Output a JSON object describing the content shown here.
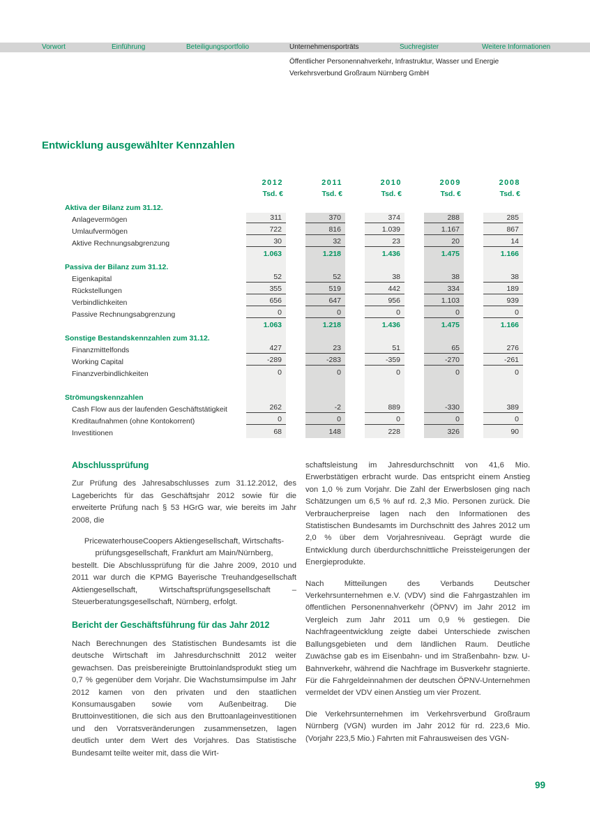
{
  "nav": {
    "items": [
      {
        "label": "Vorwort",
        "active": false
      },
      {
        "label": "Einführung",
        "active": false
      },
      {
        "label": "Beteiligungsportfolio",
        "active": false
      },
      {
        "label": "Unternehmensporträts",
        "active": true
      },
      {
        "label": "Suchregister",
        "active": false
      },
      {
        "label": "Weitere Informationen",
        "active": false
      }
    ]
  },
  "header": {
    "line1": "Öffentlicher Personennahverkehr, Infrastruktur, Wasser und Energie",
    "line2": "Verkehrsverbund Großraum Nürnberg GmbH"
  },
  "page_title": "Entwicklung ausgewählter Kennzahlen",
  "table": {
    "years": [
      "2012",
      "2011",
      "2010",
      "2009",
      "2008"
    ],
    "unit_label": "Tsd. €",
    "rows": [
      {
        "type": "section",
        "label": "Aktiva der Bilanz zum 31.12.",
        "values": [
          "",
          "",
          "",
          "",
          ""
        ]
      },
      {
        "type": "item",
        "rule": true,
        "label": "Anlagevermögen",
        "values": [
          "311",
          "370",
          "374",
          "288",
          "285"
        ]
      },
      {
        "type": "item",
        "rule": true,
        "label": "Umlaufvermögen",
        "values": [
          "722",
          "816",
          "1.039",
          "1.167",
          "867"
        ]
      },
      {
        "type": "item",
        "rule": true,
        "label": "Aktive Rechnungsabgrenzung",
        "values": [
          "30",
          "32",
          "23",
          "20",
          "14"
        ]
      },
      {
        "type": "total",
        "label": "",
        "values": [
          "1.063",
          "1.218",
          "1.436",
          "1.475",
          "1.166"
        ]
      },
      {
        "type": "section",
        "label": "Passiva der Bilanz zum 31.12.",
        "values": [
          "",
          "",
          "",
          "",
          ""
        ]
      },
      {
        "type": "item",
        "rule": true,
        "label": "Eigenkapital",
        "values": [
          "52",
          "52",
          "38",
          "38",
          "38"
        ]
      },
      {
        "type": "item",
        "rule": true,
        "label": "Rückstellungen",
        "values": [
          "355",
          "519",
          "442",
          "334",
          "189"
        ]
      },
      {
        "type": "item",
        "rule": true,
        "label": "Verbindlichkeiten",
        "values": [
          "656",
          "647",
          "956",
          "1.103",
          "939"
        ]
      },
      {
        "type": "item",
        "rule": true,
        "label": "Passive Rechnungsabgrenzung",
        "values": [
          "0",
          "0",
          "0",
          "0",
          "0"
        ]
      },
      {
        "type": "total",
        "label": "",
        "values": [
          "1.063",
          "1.218",
          "1.436",
          "1.475",
          "1.166"
        ]
      },
      {
        "type": "section",
        "label": "Sonstige Bestandskennzahlen zum 31.12.",
        "values": [
          "",
          "",
          "",
          "",
          ""
        ]
      },
      {
        "type": "item",
        "rule": true,
        "label": "Finanzmittelfonds",
        "values": [
          "427",
          "23",
          "51",
          "65",
          "276"
        ]
      },
      {
        "type": "item",
        "rule": true,
        "label": "Working Capital",
        "values": [
          "-289",
          "-283",
          "-359",
          "-270",
          "-261"
        ]
      },
      {
        "type": "item",
        "rule": false,
        "label": "Finanzverbindlichkeiten",
        "values": [
          "0",
          "0",
          "0",
          "0",
          "0"
        ]
      },
      {
        "type": "spacer",
        "label": "",
        "values": [
          "",
          "",
          "",
          "",
          ""
        ]
      },
      {
        "type": "section",
        "label": "Strömungskennzahlen",
        "values": [
          "",
          "",
          "",
          "",
          ""
        ]
      },
      {
        "type": "item",
        "rule": true,
        "label": "Cash Flow aus der laufenden Geschäftstätigkeit",
        "values": [
          "262",
          "-2",
          "889",
          "-330",
          "389"
        ]
      },
      {
        "type": "item",
        "rule": true,
        "label": "Kreditaufnahmen (ohne Kontokorrent)",
        "values": [
          "0",
          "0",
          "0",
          "0",
          "0"
        ]
      },
      {
        "type": "item",
        "rule": false,
        "label": "Investitionen",
        "values": [
          "68",
          "148",
          "228",
          "326",
          "90"
        ]
      }
    ]
  },
  "articles": {
    "left": [
      {
        "type": "heading",
        "text": "Abschlussprüfung"
      },
      {
        "type": "para",
        "text": "Zur Prüfung des Jahresabschlusses zum 31.12.2012, des Lageberichts für das Geschäftsjahr 2012 sowie für die erweiterte Prüfung nach § 53 HGrG war, wie bereits im Jahr 2008, die"
      },
      {
        "type": "center",
        "text": "PricewaterhouseCoopers Aktiengesellschaft, Wirtschafts-\nprüfungsgesellschaft, Frankfurt am Main/Nürnberg,"
      },
      {
        "type": "para",
        "text": "bestellt. Die Abschlussprüfung für die Jahre 2009, 2010 und 2011 war durch die KPMG Bayerische Treuhandgesellschaft Aktiengesellschaft, Wirtschaftsprüfungsgesellschaft – Steuerberatungsgesellschaft, Nürnberg, erfolgt."
      },
      {
        "type": "heading",
        "text": "Bericht der Geschäftsführung für das Jahr 2012"
      },
      {
        "type": "para",
        "text": "Nach Berechnungen des Statistischen Bundesamts ist die deutsche Wirtschaft im Jahresdurchschnitt 2012 weiter gewachsen. Das preisbereinigte Bruttoinlandsprodukt stieg um 0,7 % gegenüber dem Vorjahr. Die Wachstumsimpulse im Jahr 2012 kamen von den privaten und den staatlichen Konsumausgaben sowie vom Außenbeitrag. Die Bruttoinvestitionen, die sich aus den Bruttoanlageinvestitionen und den Vorratsveränderungen zusammensetzen, lagen deutlich unter dem Wert des Vorjahres. Das Statistische Bundesamt teilte weiter mit, dass die Wirt-"
      }
    ],
    "right": [
      {
        "type": "para",
        "text": "schaftsleistung im Jahresdurchschnitt von 41,6 Mio. Erwerbstätigen erbracht wurde. Das entspricht einem Anstieg von 1,0 % zum Vorjahr. Die Zahl der Erwerbslosen ging nach Schätzungen um 6,5 % auf rd. 2,3 Mio. Personen zurück. Die Verbraucherpreise lagen nach den Informationen des Statistischen Bundesamts im Durchschnitt des Jahres 2012 um 2,0 % über dem Vorjahresniveau. Geprägt wurde die Entwicklung durch überdurchschnittliche Preissteigerungen der Energieprodukte."
      },
      {
        "type": "para",
        "text": "Nach Mitteilungen des Verbands Deutscher Verkehrsunternehmen e.V. (VDV) sind die Fahrgastzahlen im öffentlichen Personennahverkehr (ÖPNV) im Jahr 2012 im Vergleich zum Jahr 2011 um 0,9 % gestiegen. Die Nachfrageentwicklung zeigte dabei Unterschiede zwischen Ballungsgebieten und dem ländlichen Raum. Deutliche Zuwächse gab es im Eisenbahn- und im Straßenbahn- bzw. U-Bahnverkehr, während die Nachfrage im Busverkehr stagnierte. Für die Fahrgeldeinnahmen der deutschen ÖPNV-Unternehmen vermeldet der VDV einen Anstieg um vier Prozent."
      },
      {
        "type": "para",
        "text": "Die Verkehrsunternehmen im Verkehrsverbund Großraum Nürnberg (VGN) wurden im Jahr 2012 für rd. 223,6 Mio. (Vorjahr 223,5 Mio.) Fahrten mit Fahrausweisen des VGN-"
      }
    ]
  },
  "page_number": "99",
  "colors": {
    "accent": "#00935f",
    "nav_bar": "#d4d4d4",
    "column_light": "#efefee",
    "column_dark": "#dcdcdb",
    "row_rule": "#3d3d3d"
  }
}
